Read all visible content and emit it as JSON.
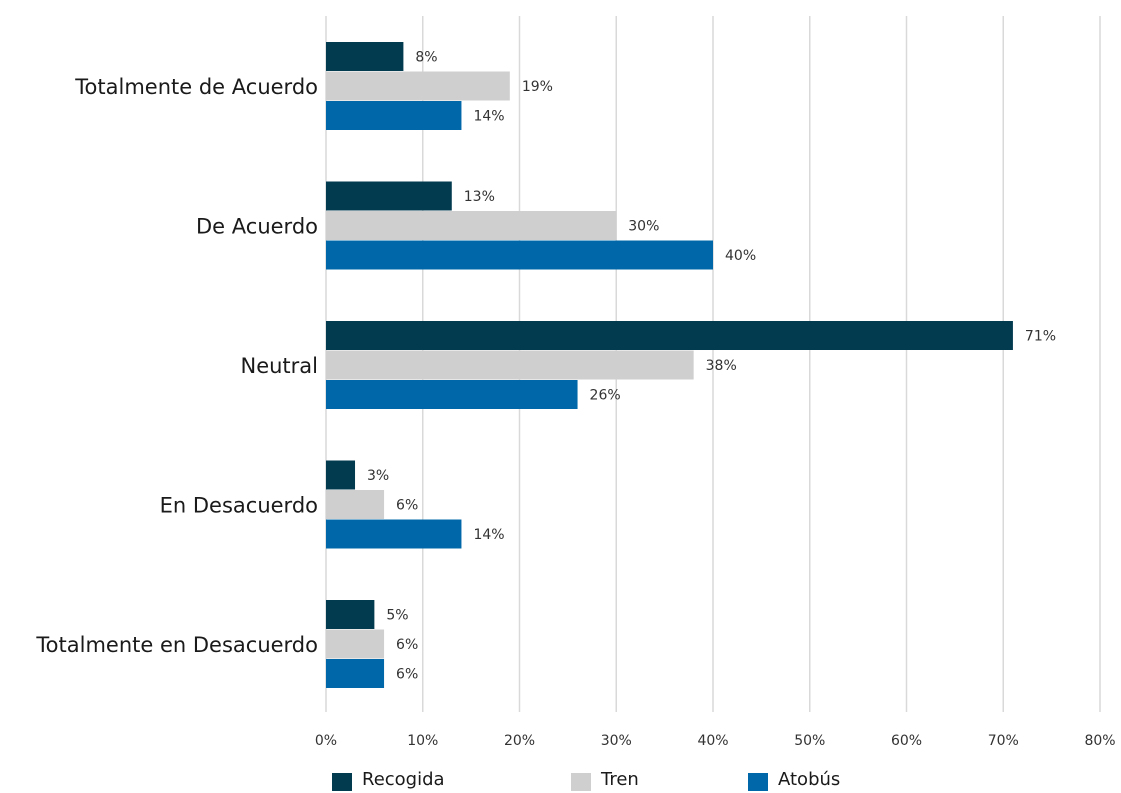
{
  "chart_data": {
    "type": "bar",
    "orientation": "horizontal",
    "categories": [
      "Totalmente de Acuerdo",
      "De Acuerdo",
      "Neutral",
      "En Desacuerdo",
      "Totalmente en Desacuerdo"
    ],
    "series": [
      {
        "name": "Recogida",
        "color": "#023a4f",
        "values": [
          8,
          13,
          71,
          3,
          5
        ],
        "labels": [
          "8%",
          "13%",
          "71%",
          "3%",
          "5%"
        ]
      },
      {
        "name": "Tren",
        "color": "#cfcfcf",
        "values": [
          19,
          30,
          38,
          6,
          6
        ],
        "labels": [
          "19%",
          "30%",
          "38%",
          "6%",
          "6%"
        ]
      },
      {
        "name": "Atobús",
        "color": "#0068a8",
        "values": [
          14,
          40,
          26,
          14,
          6
        ],
        "labels": [
          "14%",
          "40%",
          "26%",
          "14%",
          "6%"
        ]
      }
    ],
    "xticks": [
      "0%",
      "10%",
      "20%",
      "30%",
      "40%",
      "50%",
      "60%",
      "70%",
      "80%"
    ],
    "xlim": [
      0,
      80
    ],
    "grid": "vertical",
    "legend_position": "bottom",
    "title": "",
    "xlabel": "",
    "ylabel": ""
  }
}
